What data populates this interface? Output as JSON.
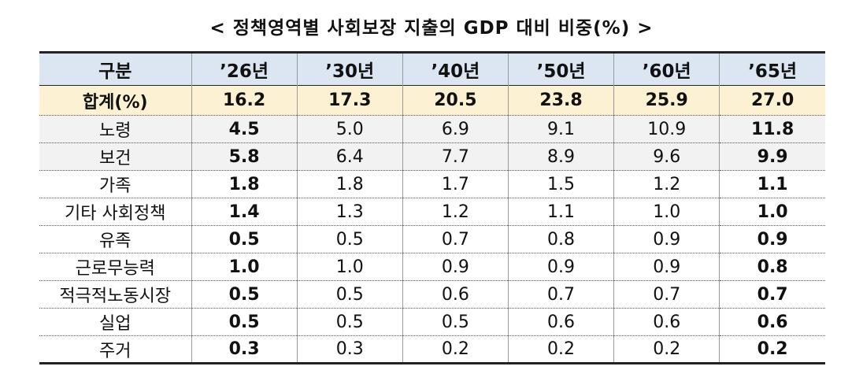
{
  "title": "< 정책영역별 사회보장 지출의 GDP 대비 비중(%) >",
  "table": {
    "header": [
      "구분",
      "’26년",
      "’30년",
      "’40년",
      "’50년",
      "’60년",
      "’65년"
    ],
    "rows": [
      [
        "합계(%)",
        "16.2",
        "17.3",
        "20.5",
        "23.8",
        "25.9",
        "27.0"
      ],
      [
        "노령",
        "4.5",
        "5.0",
        "6.9",
        "9.1",
        "10.9",
        "11.8"
      ],
      [
        "보건",
        "5.8",
        "6.4",
        "7.7",
        "8.9",
        "9.6",
        "9.9"
      ],
      [
        "가족",
        "1.8",
        "1.8",
        "1.7",
        "1.5",
        "1.2",
        "1.1"
      ],
      [
        "기타 사회정책",
        "1.4",
        "1.3",
        "1.2",
        "1.1",
        "1.0",
        "1.0"
      ],
      [
        "유족",
        "0.5",
        "0.5",
        "0.7",
        "0.8",
        "0.9",
        "0.9"
      ],
      [
        "근로무능력",
        "1.0",
        "1.0",
        "0.9",
        "0.9",
        "0.9",
        "0.8"
      ],
      [
        "적극적노동시장",
        "0.5",
        "0.5",
        "0.6",
        "0.7",
        "0.7",
        "0.7"
      ],
      [
        "실업",
        "0.5",
        "0.5",
        "0.5",
        "0.6",
        "0.6",
        "0.6"
      ],
      [
        "주거",
        "0.3",
        "0.3",
        "0.2",
        "0.2",
        "0.2",
        "0.2"
      ]
    ]
  }
}
